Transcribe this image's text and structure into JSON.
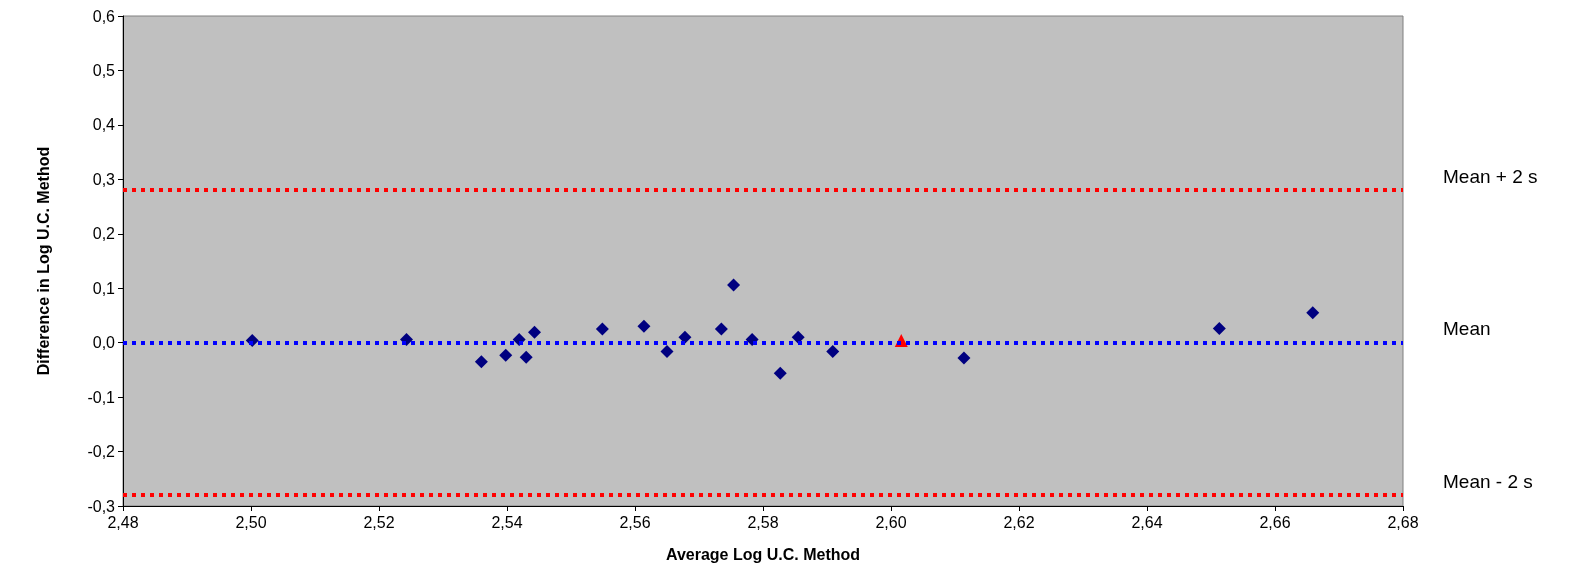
{
  "chart_data": {
    "type": "scatter",
    "xlabel": "Average Log U.C. Method",
    "ylabel": "Difference in Log U.C. Method",
    "xlim": [
      2.48,
      2.68
    ],
    "xticks": [
      {
        "value": 2.48,
        "label": "2,48"
      },
      {
        "value": 2.5,
        "label": "2,50"
      },
      {
        "value": 2.52,
        "label": "2,52"
      },
      {
        "value": 2.54,
        "label": "2,54"
      },
      {
        "value": 2.56,
        "label": "2,56"
      },
      {
        "value": 2.58,
        "label": "2,58"
      },
      {
        "value": 2.6,
        "label": "2,60"
      },
      {
        "value": 2.62,
        "label": "2,62"
      },
      {
        "value": 2.64,
        "label": "2,64"
      },
      {
        "value": 2.66,
        "label": "2,66"
      },
      {
        "value": 2.68,
        "label": "2,68"
      }
    ],
    "ylim": [
      -0.3,
      0.6
    ],
    "yticks": [
      {
        "value": -0.3,
        "label": "-0,3"
      },
      {
        "value": -0.2,
        "label": "-0,2"
      },
      {
        "value": -0.1,
        "label": "-0,1"
      },
      {
        "value": 0,
        "label": "0,0"
      },
      {
        "value": 0.1,
        "label": "0,1"
      },
      {
        "value": 0.2,
        "label": "0,2"
      },
      {
        "value": 0.3,
        "label": "0,3"
      },
      {
        "value": 0.4,
        "label": "0,4"
      },
      {
        "value": 0.5,
        "label": "0,5"
      },
      {
        "value": 0.6,
        "label": "0,6"
      }
    ],
    "grid": false,
    "series": [
      {
        "color": "#000080",
        "marker": "diamond",
        "x": [
          2.5002,
          2.5243,
          2.536,
          2.5398,
          2.5419,
          2.543,
          2.5443,
          2.5549,
          2.5614,
          2.565,
          2.5678,
          2.5735,
          2.5754,
          2.5783,
          2.5827,
          2.5855,
          2.5909,
          2.6114,
          2.6513,
          2.6659
        ],
        "values": [
          0.004,
          0.006,
          -0.035,
          -0.023,
          0.006,
          -0.027,
          0.019,
          0.025,
          0.03,
          -0.016,
          0.01,
          0.025,
          0.106,
          0.006,
          -0.056,
          0.01,
          -0.016,
          -0.028,
          0.026,
          0.055
        ]
      },
      {
        "color": "#ff0000",
        "marker": "triangle",
        "x": [
          2.6016
        ],
        "values": [
          0.004
        ]
      }
    ],
    "ref_lines": [
      {
        "axis": "y",
        "value": 0.281,
        "label": "Mean + 2 s",
        "color": "#ff0000",
        "line_style": "dotted"
      },
      {
        "axis": "y",
        "value": 0,
        "label": "Mean",
        "color": "#0000ff",
        "line_style": "dotted"
      },
      {
        "axis": "y",
        "value": -0.283,
        "label": "Mean - 2 s",
        "color": "#ff0000",
        "line_style": "dotted"
      }
    ]
  }
}
